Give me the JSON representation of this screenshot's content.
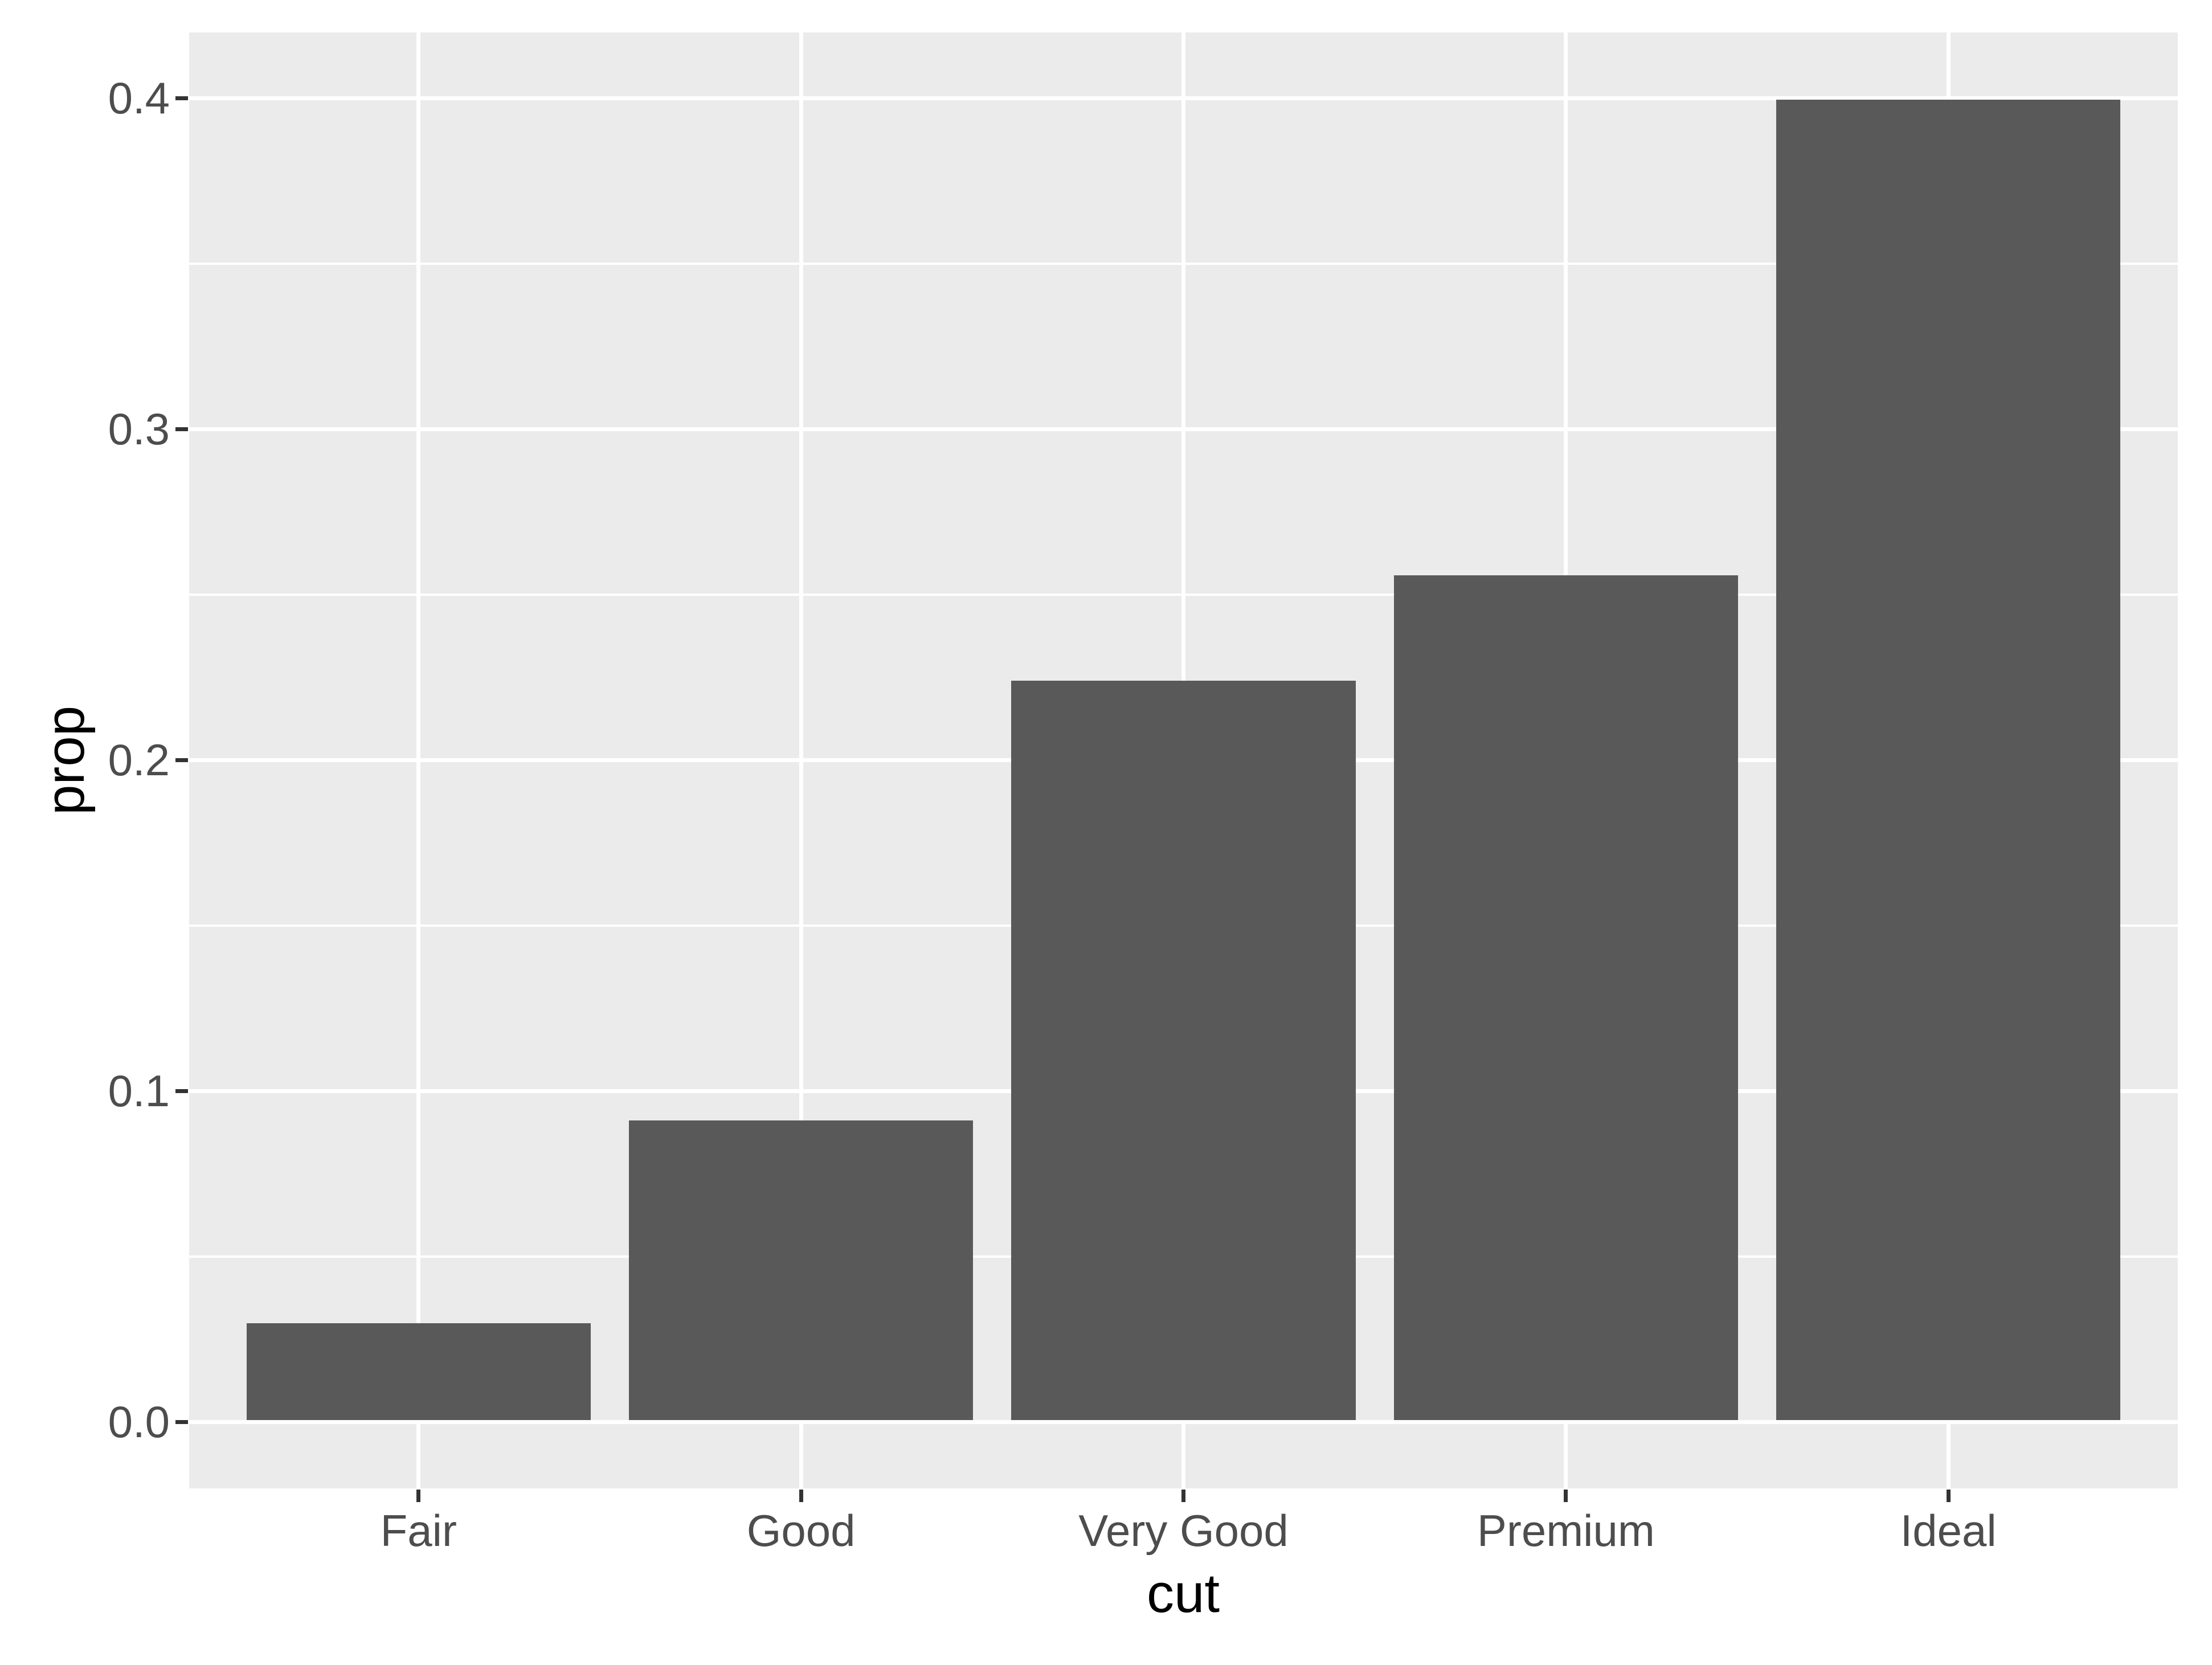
{
  "chart_data": {
    "type": "bar",
    "title": "",
    "xlabel": "cut",
    "ylabel": "prop",
    "categories": [
      "Fair",
      "Good",
      "Very Good",
      "Premium",
      "Ideal"
    ],
    "values": [
      0.0298,
      0.091,
      0.224,
      0.2557,
      0.3995
    ],
    "y_ticks": [
      0.0,
      0.1,
      0.2,
      0.3,
      0.4
    ],
    "y_tick_labels": [
      "0.0",
      "0.1",
      "0.2",
      "0.3",
      "0.4"
    ],
    "ylim": [
      -0.02,
      0.42
    ],
    "grid": true,
    "minor_grid": true,
    "legend": false,
    "colors": {
      "bar_fill": "#595959",
      "panel_background": "#EBEBEB",
      "gridline": "#FFFFFF",
      "tick_mark": "#333333",
      "tick_label": "#4D4D4D",
      "axis_title": "#000000",
      "page_background": "#FFFFFF"
    }
  }
}
